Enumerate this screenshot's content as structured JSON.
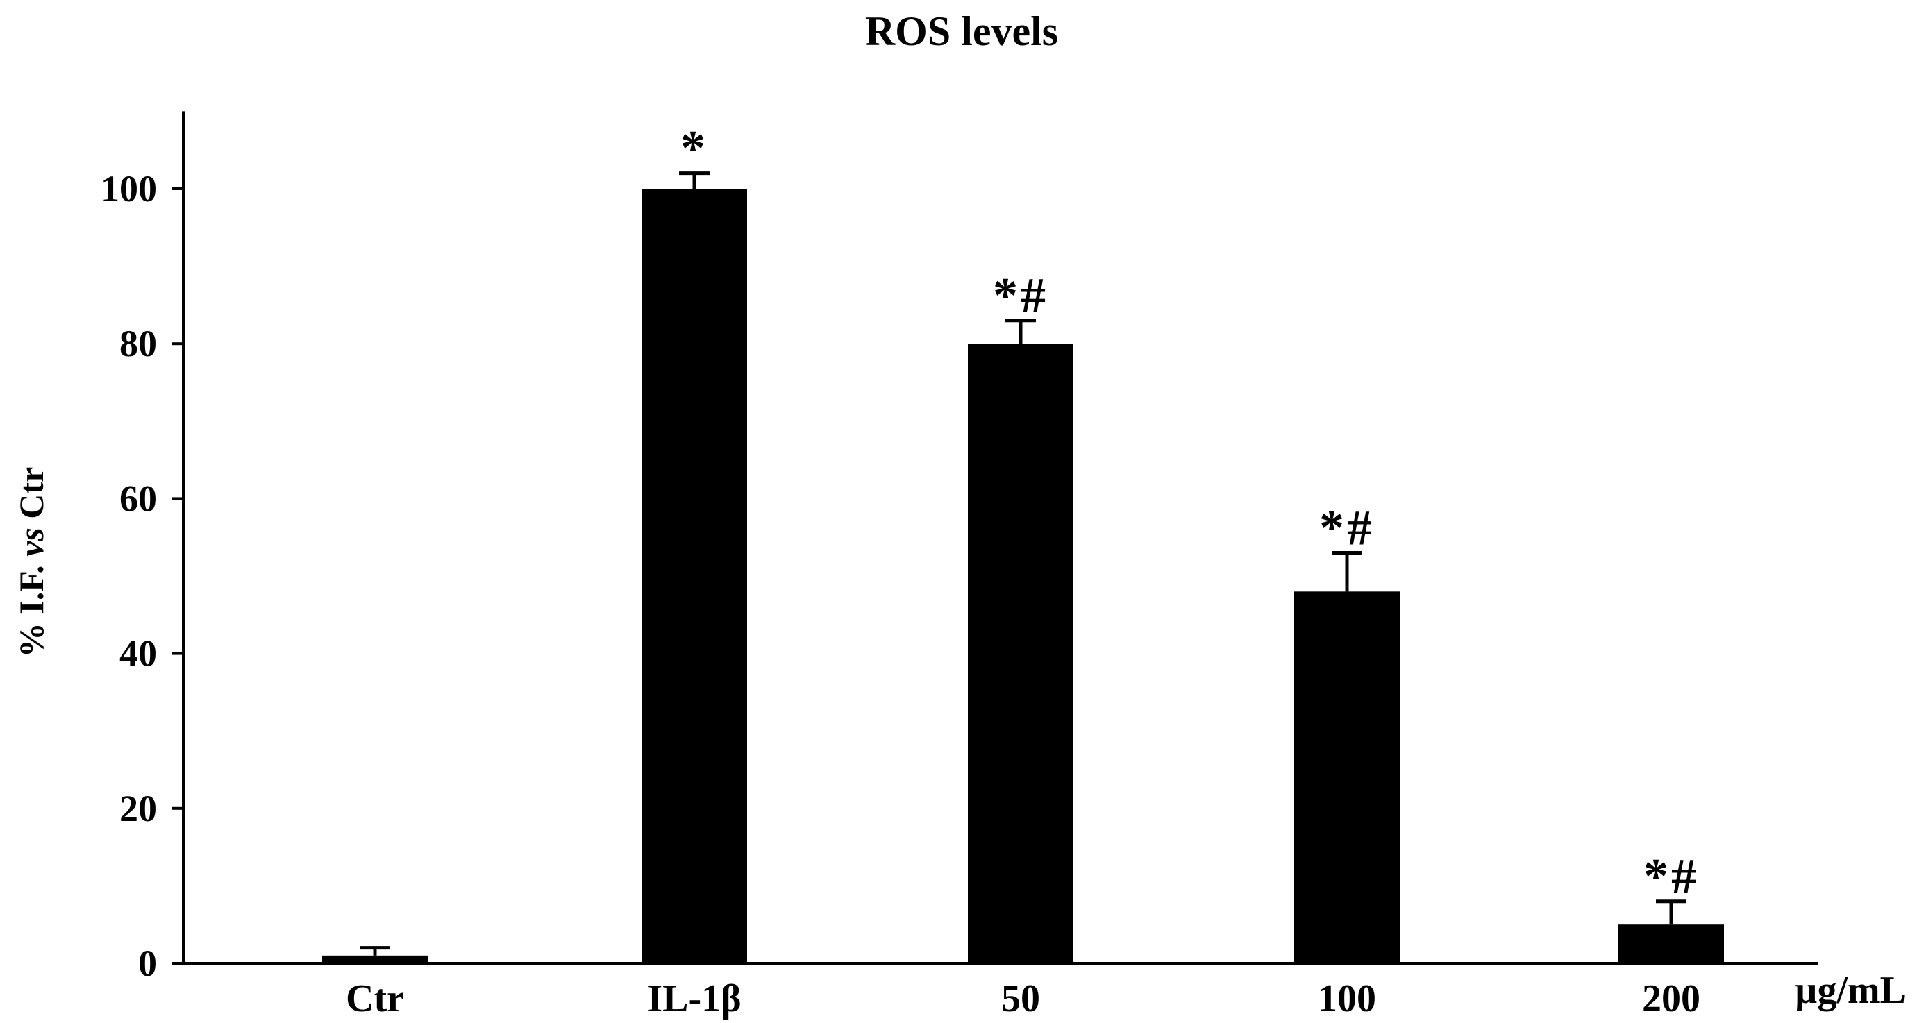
{
  "chart_data": {
    "type": "bar",
    "title": "ROS levels",
    "ylabel": "% I.F. vs Ctr",
    "ylabel_plain": "% I.F. ",
    "ylabel_italic": "vs",
    "ylabel_end": " Ctr",
    "xlabel": "",
    "unit_label": "µg/mL",
    "categories": [
      "Ctr",
      "IL-1β",
      "50",
      "100",
      "200"
    ],
    "values": [
      1,
      100,
      80,
      48,
      5
    ],
    "errors": [
      1,
      2,
      3,
      5,
      3
    ],
    "annotations": [
      "",
      "*",
      "*#",
      "*#",
      "*#"
    ],
    "ylim": [
      0,
      110
    ],
    "yticks": [
      0,
      20,
      40,
      60,
      80,
      100
    ],
    "grid": false,
    "legend": "none",
    "bar_color": "#000000"
  }
}
